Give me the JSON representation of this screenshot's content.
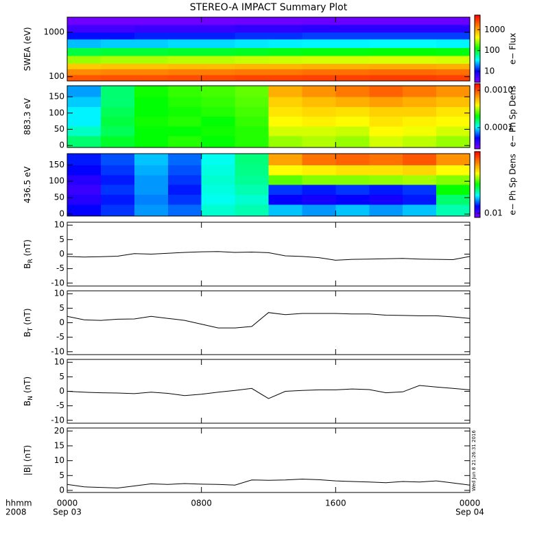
{
  "chart_data": [
    {
      "type": "heatmap",
      "title": "STEREO-A IMPACT Summary Plot",
      "ylabel": "SWEA (eV)",
      "colorbar_label": "e− Flux",
      "log_y": true,
      "ylim": [
        80,
        2200
      ],
      "yticks": [
        100,
        1000
      ],
      "xlim": [
        0,
        24
      ],
      "x_edges": [
        0,
        2,
        4,
        6,
        8,
        10,
        12,
        14,
        16,
        18,
        20,
        22,
        24
      ],
      "y_edges": [
        80,
        110,
        150,
        200,
        300,
        450,
        700,
        1000,
        1500,
        2200
      ],
      "values": [
        [
          2200,
          2300,
          2300,
          2400,
          2500,
          2600,
          2600,
          2700,
          2700,
          2800,
          2800,
          2700
        ],
        [
          1300,
          1400,
          1400,
          1500,
          1500,
          1600,
          1600,
          1700,
          1700,
          1800,
          1800,
          1700
        ],
        [
          700,
          750,
          750,
          800,
          800,
          850,
          850,
          900,
          900,
          950,
          950,
          900
        ],
        [
          260,
          280,
          280,
          300,
          300,
          320,
          330,
          340,
          340,
          350,
          350,
          340
        ],
        [
          90,
          95,
          95,
          100,
          100,
          105,
          110,
          115,
          115,
          120,
          120,
          115
        ],
        [
          26,
          28,
          28,
          30,
          30,
          32,
          33,
          34,
          34,
          35,
          35,
          34
        ],
        [
          11,
          11,
          12,
          12,
          12,
          13,
          13,
          14,
          14,
          14,
          14,
          14
        ],
        [
          5.5,
          5.5,
          6,
          6,
          6,
          6.5,
          6.5,
          7,
          7,
          7,
          7,
          7
        ],
        [
          3.5,
          3.5,
          3.5,
          3.5,
          3.5,
          3.6,
          3.6,
          3.7,
          3.7,
          3.7,
          3.7,
          3.7
        ]
      ],
      "log_z": true,
      "zlim": [
        3,
        5000
      ],
      "zticks": [
        10,
        100,
        1000
      ],
      "colormap": [
        "#7f00ff",
        "#0000ff",
        "#00ffff",
        "#00ff00",
        "#ffff00",
        "#ff8000",
        "#ff0000"
      ]
    },
    {
      "type": "heatmap",
      "ylabel": "883.3 eV",
      "colorbar_label": "e− Ph Sp Dens",
      "log_y": false,
      "ylim": [
        -6,
        184
      ],
      "yticks": [
        0,
        50,
        100,
        150
      ],
      "xlim": [
        0,
        24
      ],
      "x_edges": [
        0,
        2,
        4,
        6,
        8,
        10,
        12,
        14,
        16,
        18,
        20,
        22,
        24
      ],
      "y_edges": [
        -6,
        30,
        60,
        90,
        120,
        150,
        184
      ],
      "values": [
        [
          0.00015,
          0.00018,
          0.0002,
          0.00022,
          0.0002,
          0.00022,
          0.0003,
          0.00032,
          0.0003,
          0.00035,
          0.00033,
          0.0003
        ],
        [
          0.00012,
          0.00016,
          0.0002,
          0.0002,
          0.00021,
          0.00022,
          0.00035,
          0.00035,
          0.00034,
          0.0004,
          0.00038,
          0.00035
        ],
        [
          0.0001,
          0.00017,
          0.00021,
          0.00022,
          0.0002,
          0.00023,
          0.0004,
          0.00042,
          0.0004,
          0.00045,
          0.00042,
          0.0004
        ],
        [
          0.0001,
          0.00016,
          0.0002,
          0.00021,
          0.00022,
          0.00024,
          0.00045,
          0.00048,
          0.00046,
          0.0005,
          0.0005,
          0.00045
        ],
        [
          9e-05,
          0.00015,
          0.0002,
          0.00022,
          0.00023,
          0.00025,
          0.0005,
          0.00055,
          0.0006,
          0.00065,
          0.0006,
          0.00055
        ],
        [
          8e-05,
          0.00015,
          0.00021,
          0.00023,
          0.00024,
          0.00026,
          0.0006,
          0.0007,
          0.0008,
          0.0009,
          0.0008,
          0.0007
        ]
      ],
      "log_z": true,
      "zlim": [
        2.7e-05,
        0.0015
      ],
      "zticks": [
        {
          "value": 0.001,
          "label": "0.0010"
        },
        {
          "value": 0.0001,
          "label": "0.0001"
        }
      ],
      "colormap": [
        "#7f00ff",
        "#0000ff",
        "#00ffff",
        "#00ff00",
        "#ffff00",
        "#ff8000",
        "#ff0000"
      ]
    },
    {
      "type": "heatmap",
      "ylabel": "436.5 eV",
      "colorbar_label": "e− Ph Sp Dens",
      "log_y": false,
      "ylim": [
        -6,
        184
      ],
      "yticks": [
        0,
        50,
        100,
        150
      ],
      "xlim": [
        0,
        24
      ],
      "x_edges": [
        0,
        2,
        4,
        6,
        8,
        10,
        12,
        14,
        16,
        18,
        20,
        22,
        24
      ],
      "y_edges": [
        -6,
        30,
        60,
        90,
        120,
        150,
        184
      ],
      "values": [
        [
          0.014,
          0.016,
          0.02,
          0.018,
          0.028,
          0.03,
          0.022,
          0.02,
          0.022,
          0.02,
          0.022,
          0.03
        ],
        [
          0.012,
          0.015,
          0.019,
          0.016,
          0.026,
          0.028,
          0.014,
          0.013,
          0.014,
          0.013,
          0.015,
          0.035
        ],
        [
          0.011,
          0.016,
          0.02,
          0.015,
          0.027,
          0.03,
          0.016,
          0.015,
          0.016,
          0.015,
          0.016,
          0.045
        ],
        [
          0.012,
          0.015,
          0.02,
          0.016,
          0.028,
          0.032,
          0.055,
          0.06,
          0.06,
          0.062,
          0.065,
          0.06
        ],
        [
          0.014,
          0.016,
          0.021,
          0.017,
          0.027,
          0.033,
          0.08,
          0.085,
          0.09,
          0.09,
          0.095,
          0.08
        ],
        [
          0.015,
          0.017,
          0.022,
          0.018,
          0.026,
          0.034,
          0.12,
          0.15,
          0.16,
          0.15,
          0.17,
          0.13
        ]
      ],
      "log_z": true,
      "zlim": [
        0.008,
        0.25
      ],
      "zticks": [
        0.01
      ],
      "colormap": [
        "#7f00ff",
        "#0000ff",
        "#00ffff",
        "#00ff00",
        "#ffff00",
        "#ff8000",
        "#ff0000"
      ]
    },
    {
      "type": "line",
      "ylabel": "B",
      "ylabel_sub": "R",
      "ylabel_unit": "(nT)",
      "ylim": [
        -11,
        11
      ],
      "yticks": [
        -10,
        -5,
        0,
        5,
        10
      ],
      "xlim": [
        0,
        24
      ],
      "color": "#000000",
      "x": [
        0,
        1,
        2,
        3,
        4,
        5,
        6,
        7,
        8,
        9,
        10,
        11,
        12,
        13,
        14,
        15,
        16,
        17,
        18,
        19,
        20,
        21,
        22,
        23,
        24
      ],
      "values": [
        -0.8,
        -1,
        -0.9,
        -0.7,
        0.2,
        0,
        0.3,
        0.6,
        0.8,
        0.9,
        0.6,
        0.7,
        0.5,
        -0.6,
        -0.8,
        -1.2,
        -2.1,
        -1.8,
        -1.7,
        -1.6,
        -1.5,
        -1.7,
        -1.8,
        -1.9,
        -0.8
      ]
    },
    {
      "type": "line",
      "ylabel": "B",
      "ylabel_sub": "T",
      "ylabel_unit": "(nT)",
      "ylim": [
        -11,
        11
      ],
      "yticks": [
        -10,
        -5,
        0,
        5,
        10
      ],
      "xlim": [
        0,
        24
      ],
      "color": "#000000",
      "x": [
        0,
        1,
        2,
        3,
        4,
        5,
        6,
        7,
        8,
        9,
        10,
        11,
        12,
        13,
        14,
        15,
        16,
        17,
        18,
        19,
        20,
        21,
        22,
        23,
        24
      ],
      "values": [
        2.2,
        1,
        0.8,
        1.2,
        1.3,
        2.2,
        1.5,
        0.8,
        -0.5,
        -1.8,
        -1.8,
        -1.3,
        3.5,
        2.8,
        3.2,
        3.2,
        3.2,
        3,
        3,
        2.6,
        2.5,
        2.4,
        2.4,
        2,
        1.5
      ]
    },
    {
      "type": "line",
      "ylabel": "B",
      "ylabel_sub": "N",
      "ylabel_unit": "(nT)",
      "ylim": [
        -11,
        11
      ],
      "yticks": [
        -10,
        -5,
        0,
        5,
        10
      ],
      "xlim": [
        0,
        24
      ],
      "color": "#000000",
      "x": [
        0,
        1,
        2,
        3,
        4,
        5,
        6,
        7,
        8,
        9,
        10,
        11,
        12,
        13,
        14,
        15,
        16,
        17,
        18,
        19,
        20,
        21,
        22,
        23,
        24
      ],
      "values": [
        0,
        -0.3,
        -0.5,
        -0.6,
        -0.8,
        -0.3,
        -0.7,
        -1.5,
        -1,
        -0.3,
        0.3,
        1,
        -2.5,
        0,
        0.3,
        0.5,
        0.5,
        0.8,
        0.6,
        -0.5,
        -0.2,
        2,
        1.5,
        1,
        0.5
      ]
    },
    {
      "type": "line",
      "ylabel": "|B| (nT)",
      "ylim": [
        -0.7,
        21
      ],
      "yticks": [
        0,
        5,
        10,
        15,
        20
      ],
      "xlim": [
        0,
        24
      ],
      "color": "#000000",
      "x": [
        0,
        1,
        2,
        3,
        4,
        5,
        6,
        7,
        8,
        9,
        10,
        11,
        12,
        13,
        14,
        15,
        16,
        17,
        18,
        19,
        20,
        21,
        22,
        23,
        24
      ],
      "values": [
        2,
        1.2,
        1,
        0.8,
        1.5,
        2.2,
        2,
        2.3,
        2.1,
        2,
        1.8,
        3.5,
        3.4,
        3.5,
        3.8,
        3.6,
        3.2,
        3,
        2.8,
        2.6,
        3,
        2.8,
        3.2,
        2.5,
        1.8
      ],
      "xticks": [
        {
          "value": 0,
          "label": "0000"
        },
        {
          "value": 8,
          "label": "0800"
        },
        {
          "value": 16,
          "label": "1600"
        },
        {
          "value": 24,
          "label": "0000"
        }
      ],
      "date_labels": [
        {
          "value": 0,
          "label": "Sep 03"
        },
        {
          "value": 24,
          "label": "Sep 04"
        }
      ],
      "xlabel": "hhmm",
      "xlabel_year": "2008",
      "annotation": "Wed Jun  8 21:26:31 2016"
    }
  ]
}
